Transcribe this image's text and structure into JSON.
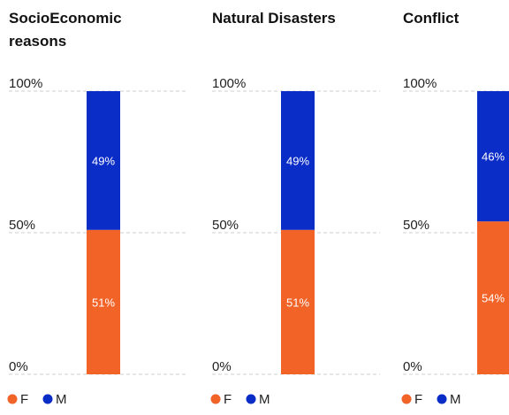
{
  "chart_data": [
    {
      "type": "bar",
      "stacked": true,
      "title": "SocioEconomic reasons",
      "categories": [
        ""
      ],
      "series": [
        {
          "name": "F",
          "values": [
            51
          ],
          "color": "#F26328"
        },
        {
          "name": "M",
          "values": [
            49
          ],
          "color": "#0A2CC7"
        }
      ],
      "ylim": [
        0,
        100
      ],
      "yticks": [
        "0%",
        "50%",
        "100%"
      ],
      "data_labels": [
        "51%",
        "49%"
      ],
      "legend": {
        "position": "bottom-left",
        "entries": [
          "F",
          "M"
        ]
      },
      "grid": "dashed horizontal"
    },
    {
      "type": "bar",
      "stacked": true,
      "title": "Natural Disasters",
      "categories": [
        ""
      ],
      "series": [
        {
          "name": "F",
          "values": [
            51
          ],
          "color": "#F26328"
        },
        {
          "name": "M",
          "values": [
            49
          ],
          "color": "#0A2CC7"
        }
      ],
      "ylim": [
        0,
        100
      ],
      "yticks": [
        "0%",
        "50%",
        "100%"
      ],
      "data_labels": [
        "51%",
        "49%"
      ],
      "legend": {
        "position": "bottom-left",
        "entries": [
          "F",
          "M"
        ]
      },
      "grid": "dashed horizontal"
    },
    {
      "type": "bar",
      "stacked": true,
      "title": "Conflict",
      "categories": [
        ""
      ],
      "series": [
        {
          "name": "F",
          "values": [
            54
          ],
          "color": "#F26328"
        },
        {
          "name": "M",
          "values": [
            46
          ],
          "color": "#0A2CC7"
        }
      ],
      "ylim": [
        0,
        100
      ],
      "yticks": [
        "0%",
        "50%",
        "100%"
      ],
      "data_labels": [
        "54%",
        "46%"
      ],
      "legend": {
        "position": "bottom-left",
        "entries": [
          "F",
          "M"
        ]
      },
      "grid": "dashed horizontal"
    }
  ]
}
